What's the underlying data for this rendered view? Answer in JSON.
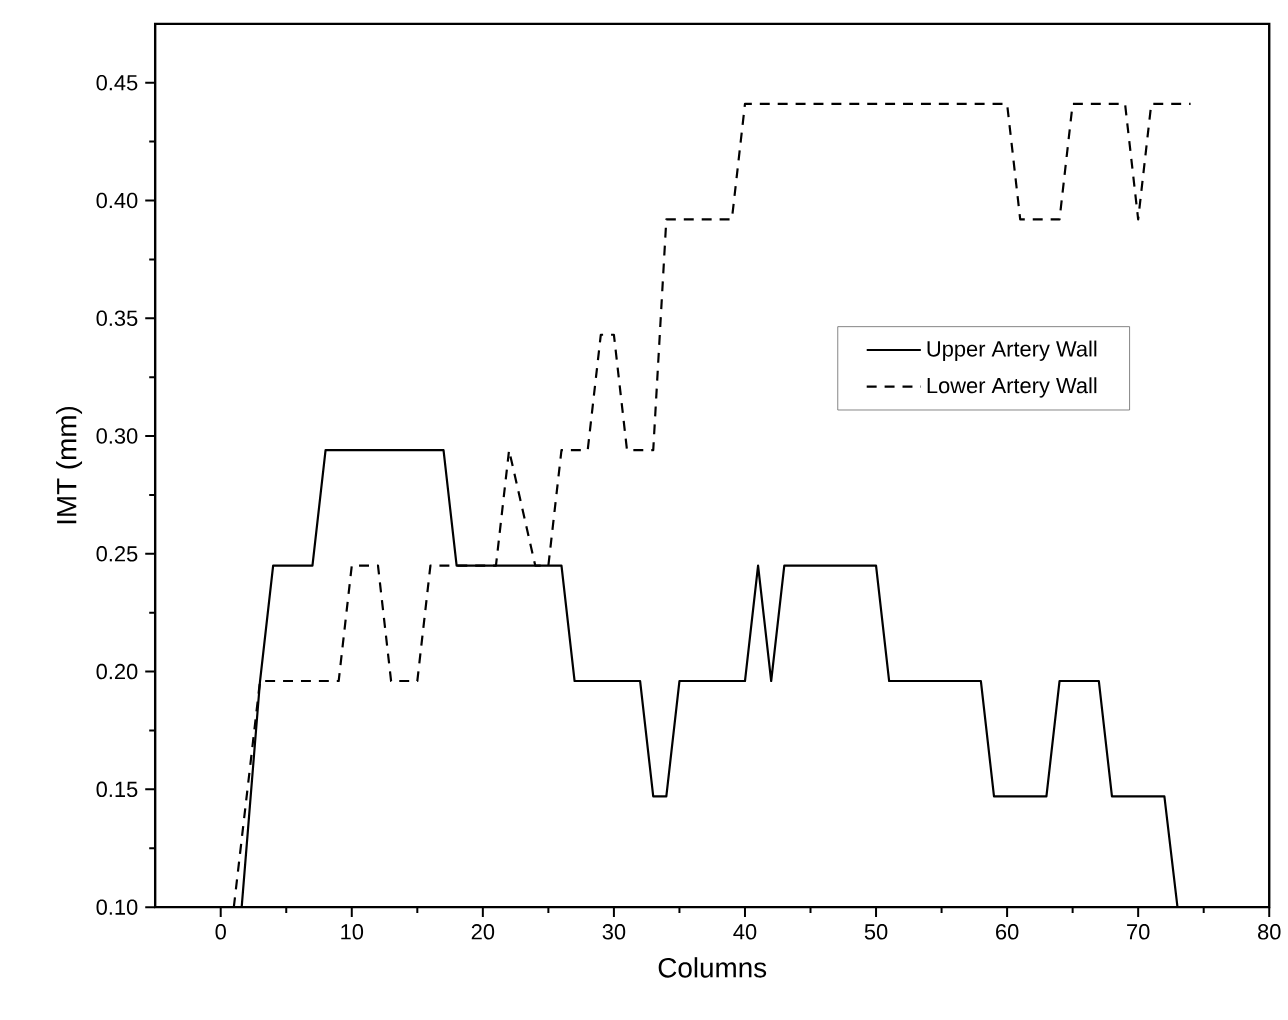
{
  "chart_data": {
    "type": "line",
    "xlabel": "Columns",
    "ylabel": "IMT (mm)",
    "x": [
      1.6,
      3,
      4,
      7,
      8,
      17,
      18,
      26,
      27,
      32,
      33,
      34,
      35,
      40,
      41,
      42,
      43,
      50,
      51,
      58,
      59,
      63,
      64,
      67,
      68,
      72,
      73
    ],
    "series": [
      {
        "name": "Upper Artery Wall",
        "color": "#000000",
        "line_style": "solid",
        "values": [
          0.1,
          0.196,
          0.245,
          0.245,
          0.294,
          0.294,
          0.245,
          0.245,
          0.196,
          0.196,
          0.147,
          0.147,
          0.196,
          0.196,
          0.245,
          0.196,
          0.245,
          0.245,
          0.196,
          0.196,
          0.147,
          0.147,
          0.196,
          0.196,
          0.147,
          0.147,
          0.1
        ]
      },
      {
        "name": "Lower Artery Wall",
        "color": "#000000",
        "line_style": "dashed",
        "x": [
          1,
          3,
          9,
          10,
          12,
          13,
          15,
          16,
          21,
          22,
          24,
          25,
          26,
          28,
          29,
          30,
          31,
          33,
          34,
          39,
          40,
          60,
          61,
          64,
          65,
          69,
          70,
          71,
          74
        ],
        "values": [
          0.1,
          0.196,
          0.196,
          0.245,
          0.245,
          0.196,
          0.196,
          0.245,
          0.245,
          0.294,
          0.245,
          0.245,
          0.294,
          0.294,
          0.343,
          0.343,
          0.294,
          0.294,
          0.392,
          0.392,
          0.441,
          0.441,
          0.392,
          0.392,
          0.441,
          0.441,
          0.392,
          0.441,
          0.441
        ]
      }
    ],
    "xlim": [
      -5,
      80
    ],
    "xticks": [
      0,
      10,
      20,
      30,
      40,
      50,
      60,
      70,
      80
    ],
    "ylim": [
      0.1,
      0.475
    ],
    "yticks": [
      {
        "value": 0.1,
        "label": "0.10"
      },
      {
        "value": 0.15,
        "label": "0.15"
      },
      {
        "value": 0.2,
        "label": "0.20"
      },
      {
        "value": 0.25,
        "label": "0.25"
      },
      {
        "value": 0.3,
        "label": "0.30"
      },
      {
        "value": 0.35,
        "label": "0.35"
      },
      {
        "value": 0.4,
        "label": "0.40"
      },
      {
        "value": 0.45,
        "label": "0.45"
      }
    ],
    "grid": false,
    "legend": "right",
    "marker": "none"
  }
}
